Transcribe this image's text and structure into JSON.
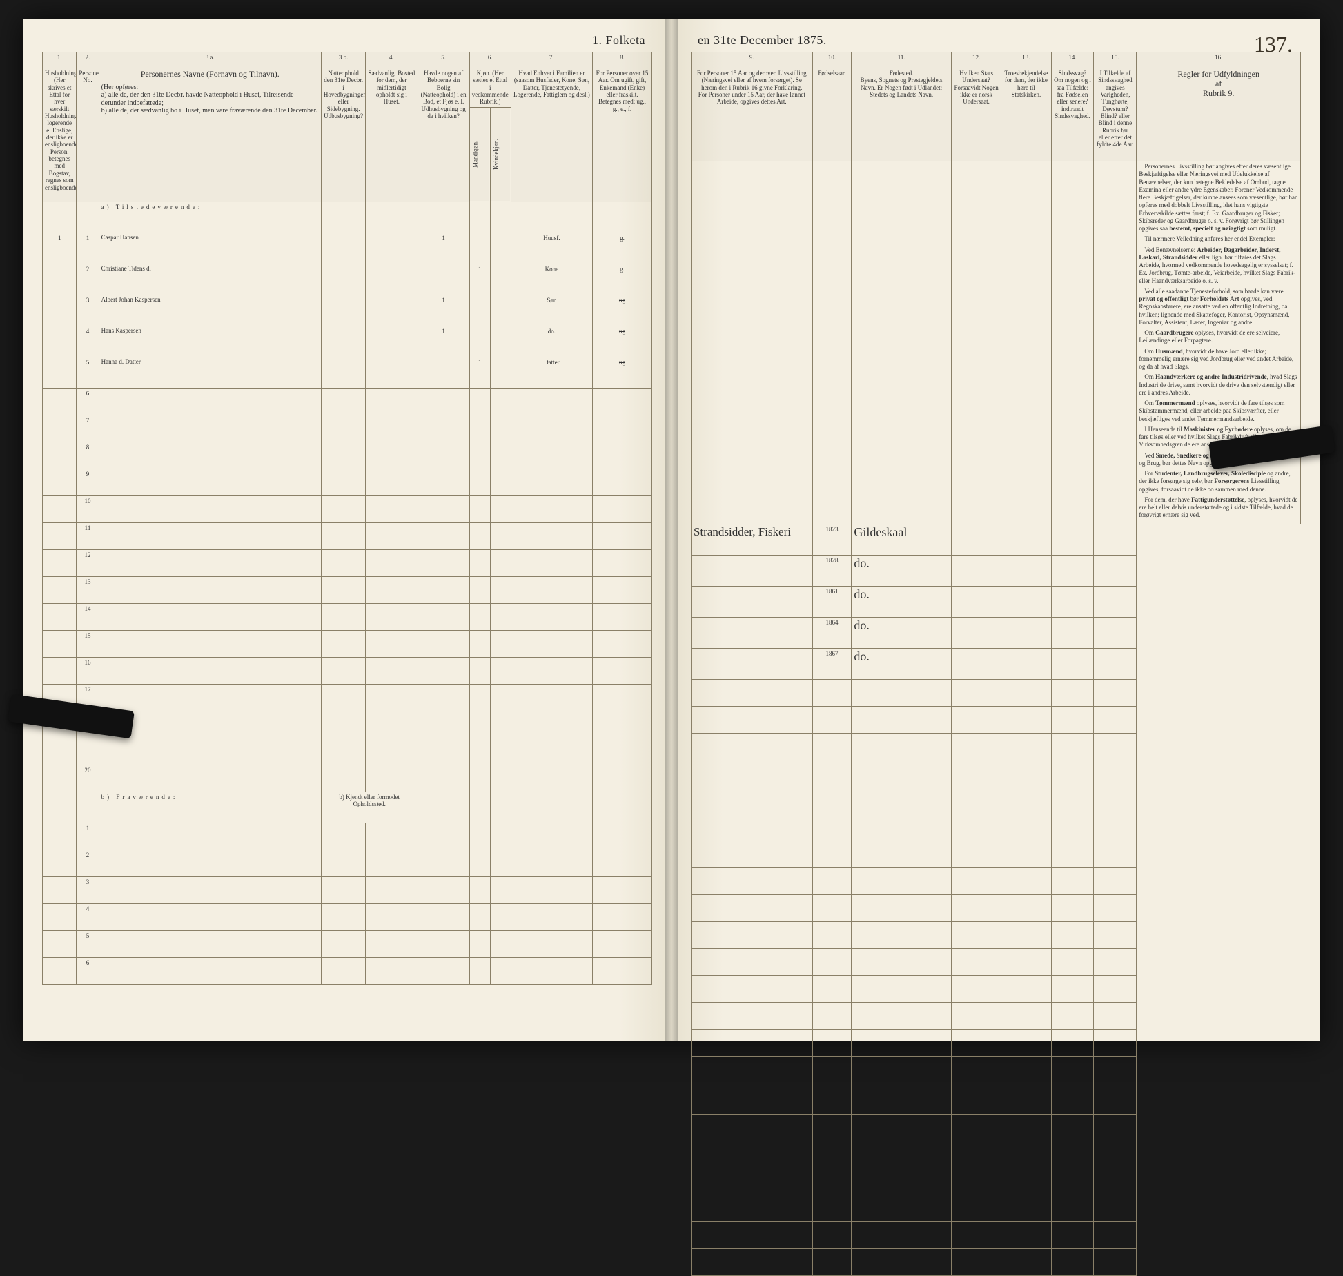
{
  "title_left": "1.  Folketa",
  "title_right": "en 31te December 1875.",
  "page_number": "137.",
  "col_numbers_left": [
    "1.",
    "2.",
    "3 a.",
    "3 b.",
    "4.",
    "5.",
    "6.",
    "7.",
    "8."
  ],
  "col_numbers_right": [
    "9.",
    "10.",
    "11.",
    "12.",
    "13.",
    "14.",
    "15.",
    "16."
  ],
  "headers_left": {
    "c1": "Husholdninger. (Her skrives et Ettal for hver særskilt Husholdning; logerende el Enslige, der ikke er ensligboende Person, betegnes med Bogstav, regnes som ensligboende)",
    "c2": "Personernes No.",
    "c3a_title": "Personernes Navne (Fornavn og Tilnavn).",
    "c3a_sub": "(Her opføres:\na) alle de, der den 31te Decbr. havde Natteophold i Huset, Tilreisende derunder indbefattede;\nb) alle de, der sædvanlig bo i Huset, men vare fraværende den 31te December.",
    "c3b": "Natteophold den 31te Decbr. i Hovedbygningen eller Sidebygning. Udbusbygning?",
    "c4": "Sædvanligt Bosted for dem, der midlertidigt opholdt sig i Huset.",
    "c5": "Havde nogen af Beboerne sin Bolig (Natteophold) i en Bod, et Fjøs e. l. Udhusbygning og da i hvilken?",
    "c6": "Kjøn. (Her sættes et Ettal i vedkommende Rubrik.)",
    "c6a": "Mandkjøn.",
    "c6b": "Kvindekjøn.",
    "c7": "Hvad Enhver i Familien er (saasom Husfader, Kone, Søn, Datter, Tjenestetyende, Logerende, Fattiglem og desl.)",
    "c8": "For Personer over 15 Aar. Om ugift, gift, Enkemand (Enke) eller fraskilt. Betegnes med: ug., g., e., f."
  },
  "headers_right": {
    "c9": "For Personer 15 Aar og derover. Livsstilling (Næringsvei eller af hvem forsørget). Se herom den i Rubrik 16 givne Forklaring.\nFor Personer under 15 Aar, der have lønnet Arbeide, opgives dettes Art.",
    "c10": "Fødselsaar.",
    "c11": "Fødested.\nByens, Sognets og Prestegjeldets Navn. Er Nogen født i Udlandet: Stedets og Landets Navn.",
    "c12": "Hvilken Stats Undersaat?\nForsaavidt Nogen ikke er norsk Undersaat.",
    "c13": "Troesbekjendelse for dem, der ikke høre til Statskirken.",
    "c14": "Sindssvag? Om nogen og i saa Tilfælde: fra Fødselen eller senere? indtraadt Sindssvaghed.",
    "c15": "I Tilfælde af Sindssvaghed angives Varigheden, Tunghørte, Døvstum? Blind? eller Blind i denne Rubrik før eller efter det fyldte 4de Aar.",
    "c16": "Regler for Udfyldningen\naf\nRubrik 9."
  },
  "section_a": "a)  Tilstedeværende:",
  "section_b": "b)  Fraværende:",
  "section_b_note": "b) Kjendt eller formodet Opholdssted.",
  "rows": [
    {
      "n": "1",
      "p": "1",
      "name": "Caspar Hansen",
      "c3b": "",
      "c4": "",
      "c5": "1",
      "m": "",
      "k": "",
      "rel": "Huusf.",
      "stat": "g.",
      "occ": "Strandsidder, Fiskeri",
      "year": "1823",
      "place": "Gildeskaal"
    },
    {
      "n": "",
      "p": "2",
      "name": "Christiane Tidens d.",
      "c3b": "",
      "c4": "",
      "c5": "",
      "m": "1",
      "k": "",
      "rel": "Kone",
      "stat": "g.",
      "occ": "",
      "year": "1828",
      "place": "do."
    },
    {
      "n": "",
      "p": "3",
      "name": "Albert Johan Kaspersen",
      "c3b": "",
      "c4": "",
      "c5": "1",
      "m": "",
      "k": "",
      "rel": "Søn",
      "stat": "ug",
      "occ": "",
      "year": "1861",
      "place": "do."
    },
    {
      "n": "",
      "p": "4",
      "name": "Hans Kaspersen",
      "c3b": "",
      "c4": "",
      "c5": "1",
      "m": "",
      "k": "",
      "rel": "do.",
      "stat": "ug",
      "occ": "",
      "year": "1864",
      "place": "do."
    },
    {
      "n": "",
      "p": "5",
      "name": "Hanna d. Datter",
      "c3b": "",
      "c4": "",
      "c5": "",
      "m": "1",
      "k": "",
      "rel": "Datter",
      "stat": "ug",
      "occ": "",
      "year": "1867",
      "place": "do."
    }
  ],
  "empty_rows_a": [
    "6",
    "7",
    "8",
    "9",
    "10",
    "11",
    "12",
    "13",
    "14",
    "15",
    "16",
    "17",
    "18",
    "",
    "20"
  ],
  "empty_rows_b": [
    "1",
    "2",
    "3",
    "4",
    "5",
    "6"
  ],
  "rules_text": "Personernes Livsstilling bør angives efter deres væsentlige Beskjæftigelse eller Næringsvei med Udelukkelse af Benævnelser, der kun betegne Bekledelse af Ombud, tagne Examina eller andre ydre Egenskaber. Forener Vedkommende flere Beskjæftigelser, der kunne ansees som væsentlige, bør han opføres med dobbelt Livsstilling, idet hans vigtigste Erhvervskilde sættes først; f. Ex. Gaardbruger og Fisker; Skibsreder og Gaardbruger o. s. v. Forøvrigt bør Stillingen opgives saa bestemt, specielt og nøiagtigt som muligt.\n  Til nærmere Veiledning anføres her endel Exempler:\n  Ved Benævnelserne: Arbeider, Dagarbeider, Inderst, Løskarl, Strandsidder eller lign. bør tilføies det Slags Arbeide, hvormed vedkommende hovedsagelig er sysselsat; f. Ex. Jordbrug, Tømte-arbeide, Veiarbeide, hvilket Slags Fabrik- eller Haandværksarbeide o. s. v.\n  Ved alle saadanne Tjenesteforhold, som baade kan være privat og offentligt bør Forholdets Art opgives, ved Regnskabsførere, ere ansatte ved en offentlig Indretning, da hvilken; lignende med Skattefoger, Kontorist, Opsynsmænd, Forvalter, Assistent, Lærer, Ingeniør og andre.\n  Om Gaardbrugere oplyses, hvorvidt de ere selveiere, Leilændinge eller Forpagtere.\n  Om Husmænd, hvorvidt de have Jord eller ikke; fornemmelig ernære sig ved Jordbrug eller ved andet Arbeide, og da af hvad Slags.\n  Om Haandværkere og andre Industridrivende, hvad Slags Industri de drive, samt hvorvidt de drive den selvstændigt eller ere i andres Arbeide.\n  Om Tømmermænd oplyses, hvorvidt de fare tilsøs som Skibstømmermænd, eller arbeide paa Skibsværfter, eller beskjæftiges ved andet Tømmermandsarbeide.\n  I Henseende til Maskinister og Fyrbødere oplyses, om de fare tilsøs eller ved hvilket Slags Fabrikdrift eller anden Virksomhedsgren de ere ansatte.\n  Ved Smede, Snedkere og andre, der ere ansatte ved Fabriker og Brug, bør dettes Navn opgives.\n  For Studenter, Landbrugselever, Skoledisciple og andre, der ikke forsørge sig selv, bør Forsørgerens Livsstilling opgives, forsaavidt de ikke bo sammen med denne.\n  For dem, der have Fattigunderstøttelse, oplyses, hvorvidt de ere helt eller delvis understøttede og i sidste Tilfælde, hvad de forøvrigt ernære sig ved."
}
